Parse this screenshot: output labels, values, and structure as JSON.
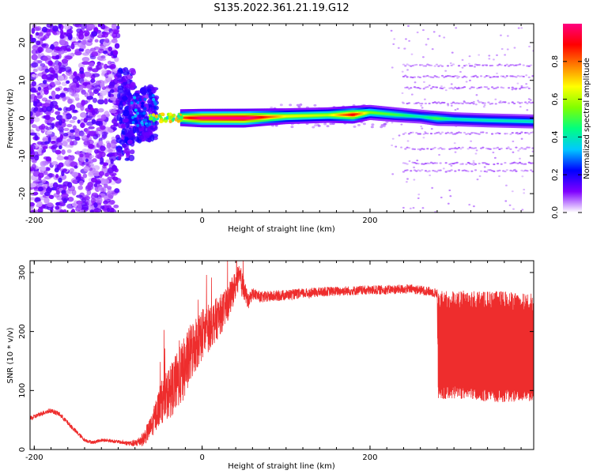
{
  "title": "S135.2022.361.21.19.G12",
  "chart_data": [
    {
      "type": "heatmap",
      "xlabel": "Height of straight line (km)",
      "ylabel": "Frequency (Hz)",
      "xlim": [
        -205,
        395
      ],
      "ylim": [
        -25,
        25
      ],
      "xticks": [
        -200,
        0,
        200
      ],
      "yticks": [
        -20,
        -10,
        0,
        10,
        20
      ],
      "colorbar": {
        "label": "Normalized spectral amplitude",
        "range": [
          0,
          1
        ],
        "ticks": [
          "0.0",
          "0.2",
          "0.4",
          "0.6",
          "0.8"
        ],
        "colormap": [
          "#ffffff",
          "#7f00ff",
          "#0000ff",
          "#00c8ff",
          "#00ff80",
          "#80ff00",
          "#ffff00",
          "#ff8000",
          "#ff0000",
          "#ff0080"
        ]
      },
      "ridge": {
        "x": [
          -60,
          -45,
          -35,
          -25,
          0,
          50,
          100,
          150,
          180,
          200,
          230,
          260,
          280,
          300,
          340,
          395
        ],
        "y": [
          1.0,
          0.6,
          0.5,
          0.1,
          0.0,
          0.0,
          0.5,
          0.8,
          0.9,
          1.5,
          0.9,
          0.4,
          -0.1,
          -0.3,
          -0.6,
          -0.9
        ],
        "amp": [
          0.35,
          0.55,
          0.7,
          0.75,
          0.95,
          1.0,
          0.6,
          0.55,
          0.85,
          0.5,
          0.45,
          0.35,
          0.45,
          0.35,
          0.35,
          0.35
        ]
      },
      "scatter_regions": [
        {
          "xmin": -205,
          "xmax": -100,
          "note": "broadband noise, low amplitude"
        },
        {
          "xmin": -100,
          "xmax": -55,
          "note": "stronger broadband"
        },
        {
          "xmin": 235,
          "xmax": 395,
          "note": "harmonic banding"
        }
      ]
    },
    {
      "type": "line",
      "xlabel": "Height of straight line (km)",
      "ylabel": "SNR (10 * v/v)",
      "xlim": [
        -205,
        395
      ],
      "ylim": [
        0,
        320
      ],
      "xticks": [
        -200,
        0,
        200
      ],
      "yticks": [
        0,
        100,
        200,
        300
      ],
      "color": "#ee2d2d",
      "series": [
        {
          "x": [
            -205,
            -190,
            -180,
            -170,
            -160,
            -150,
            -140,
            -130,
            -120,
            -110,
            -100,
            -90,
            -80,
            -70,
            -60,
            -50,
            -40,
            -30,
            -20,
            -10,
            0,
            10,
            20,
            30,
            40,
            45,
            50,
            55,
            60,
            70,
            100,
            150,
            200,
            250,
            270,
            280,
            281,
            300,
            320,
            340,
            360,
            380,
            395
          ],
          "y": [
            52,
            62,
            66,
            60,
            45,
            30,
            16,
            12,
            16,
            15,
            13,
            11,
            10,
            18,
            40,
            78,
            95,
            115,
            140,
            175,
            195,
            210,
            225,
            245,
            280,
            290,
            270,
            250,
            265,
            258,
            262,
            268,
            270,
            272,
            268,
            265,
            175,
            175,
            175,
            172,
            172,
            170,
            170
          ],
          "spread": [
            4,
            4,
            4,
            4,
            4,
            4,
            3,
            3,
            3,
            3,
            3,
            4,
            6,
            12,
            20,
            35,
            45,
            50,
            55,
            50,
            45,
            40,
            35,
            30,
            25,
            25,
            20,
            12,
            10,
            10,
            9,
            8,
            8,
            8,
            8,
            8,
            90,
            90,
            90,
            92,
            92,
            90,
            90
          ]
        }
      ]
    }
  ]
}
